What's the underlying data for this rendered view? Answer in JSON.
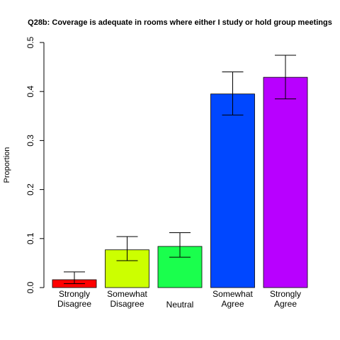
{
  "chart_data": {
    "type": "bar",
    "title": "Q28b: Coverage is adequate in rooms where either I study or hold group meetings",
    "xlabel": "",
    "ylabel": "Proportion",
    "ylim": [
      0,
      0.5
    ],
    "yticks": [
      "0.0",
      "0.1",
      "0.2",
      "0.3",
      "0.4",
      "0.5"
    ],
    "grid": false,
    "categories": [
      [
        "Strongly",
        "Disagree"
      ],
      [
        "Somewhat",
        "Disagree"
      ],
      [
        "Neutral"
      ],
      [
        "Somewhat",
        "Agree"
      ],
      [
        "Strongly",
        "Agree"
      ]
    ],
    "values": [
      0.016,
      0.077,
      0.084,
      0.395,
      0.429
    ],
    "error_low": [
      0.008,
      0.055,
      0.062,
      0.352,
      0.385
    ],
    "error_high": [
      0.032,
      0.104,
      0.112,
      0.44,
      0.474
    ],
    "colors": [
      "#ff0000",
      "#ccff00",
      "#1aff4d",
      "#0047ff",
      "#b800ff"
    ]
  }
}
